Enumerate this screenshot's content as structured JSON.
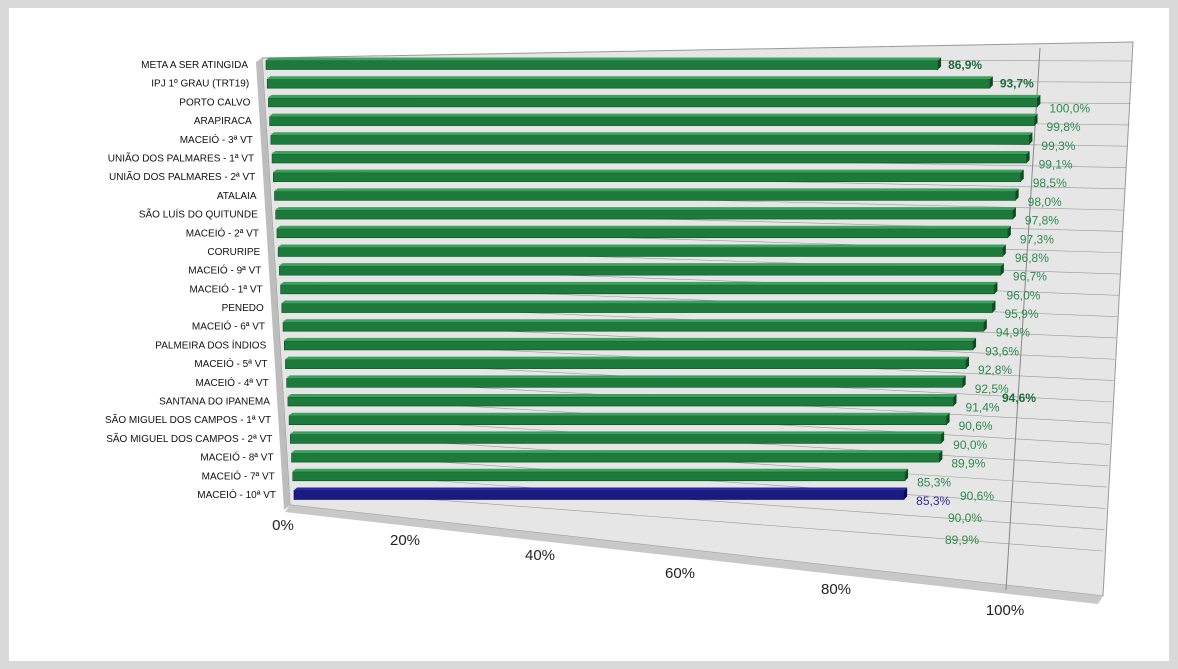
{
  "chart_data": {
    "type": "bar",
    "orientation": "horizontal",
    "view": "3d-perspective",
    "xlim": [
      0,
      100
    ],
    "x_ticks": [
      "0%",
      "20%",
      "40%",
      "60%",
      "80%",
      "100%"
    ],
    "grid": true,
    "categories": [
      "META A SER ATINGIDA",
      "IPJ 1º GRAU (TRT19)",
      "PORTO CALVO",
      "ARAPIRACA",
      "MACEIÓ - 3ª VT",
      "UNIÃO DOS PALMARES - 1ª VT",
      "UNIÃO DOS PALMARES - 2ª VT",
      "ATALAIA",
      "SÃO LUÍS DO QUITUNDE",
      "MACEIÓ - 2ª VT",
      "CORURIPE",
      "MACEIÓ - 9ª VT",
      "MACEIÓ - 1ª VT",
      "PENEDO",
      "MACEIÓ - 6ª VT",
      "PALMEIRA DOS ÍNDIOS",
      "MACEIÓ - 5ª VT",
      "MACEIÓ - 4ª VT",
      "SANTANA DO IPANEMA",
      "SÃO MIGUEL DOS CAMPOS - 1ª VT",
      "SÃO MIGUEL DOS CAMPOS - 2ª VT",
      "MACEIÓ - 8ª VT",
      "MACEIÓ - 7ª VT",
      "MACEIÓ - 10ª VT"
    ],
    "values": [
      86.9,
      93.7,
      100.0,
      99.8,
      99.3,
      99.1,
      98.5,
      98.0,
      97.8,
      97.3,
      96.8,
      96.7,
      96.0,
      95.9,
      94.9,
      93.6,
      92.8,
      92.5,
      91.4,
      90.6,
      90.0,
      89.9,
      85.3,
      85.3
    ],
    "value_labels": [
      "86,9%",
      "93,7%",
      "100,0%",
      "99,8%",
      "99,3%",
      "99,1%",
      "98,5%",
      "98,0%",
      "97,8%",
      "97,3%",
      "96,8%",
      "96,7%",
      "96,0%",
      "95,9%",
      "94,9%",
      "93,6%",
      "92,8%",
      "92,5%",
      "91,4%",
      "90,6%",
      "90,0%",
      "89,9%",
      "85,3%",
      "85,3%"
    ],
    "extra_value_labels": [
      "94,6%",
      "90,6%",
      "90,0%",
      "89,9%"
    ],
    "highlighted_labels": [
      "86,9%",
      "93,7%",
      "94,6%"
    ],
    "colors": {
      "bar": "#1e7a3c",
      "bar_top": "#3aa35c",
      "bar_dark": "#0f4a22",
      "highlight_bar": "#1a1a80",
      "highlight_bar_top": "#2a2aa8",
      "value_label": "#2f8a4f",
      "highlight_value_label": "#1e6b3a",
      "blue_label": "#2a2aa0",
      "grid": "#666666",
      "floor": "#c8c8c8",
      "back_wall": "#e6e6e6"
    }
  }
}
